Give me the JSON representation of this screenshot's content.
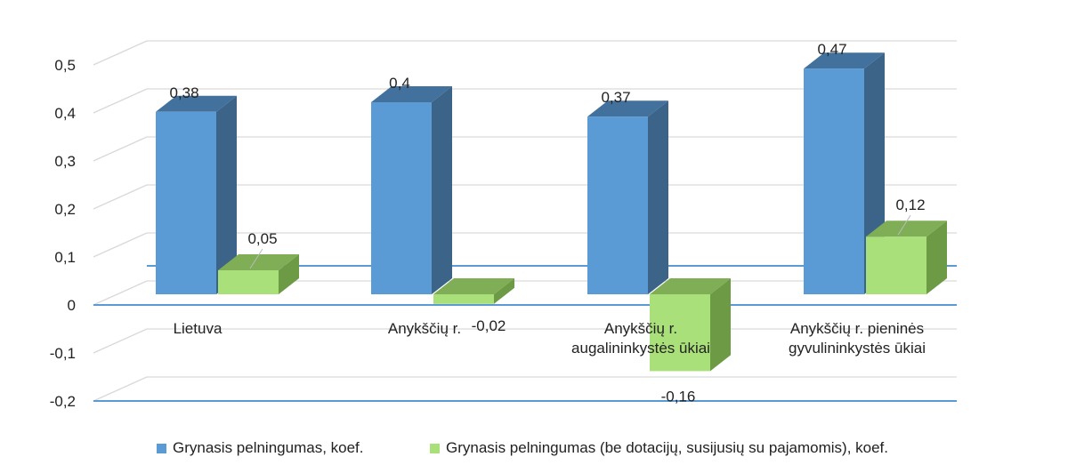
{
  "chart_data": {
    "type": "bar",
    "categories": [
      [
        "Lietuva"
      ],
      [
        "Anykščių r."
      ],
      [
        "Anykščių r.",
        "augalininkystės ūkiai"
      ],
      [
        "Anykščių r. pieninės",
        "gyvulininkystės ūkiai"
      ]
    ],
    "series": [
      {
        "name": "Grynasis pelningumas, koef.",
        "values": [
          0.38,
          0.4,
          0.37,
          0.47
        ],
        "labels": [
          "0,38",
          "0,4",
          "0,37",
          "0,47"
        ],
        "color": "#5B9BD5",
        "side_color": "#3C6388",
        "top_color": "#41719C"
      },
      {
        "name": "Grynasis pelningumas (be dotacijų, susijusių su pajamomis), koef.",
        "values": [
          0.05,
          -0.02,
          -0.16,
          0.12
        ],
        "labels": [
          "0,05",
          "-0,02",
          "-0,16",
          "0,12"
        ],
        "color": "#A9E07A",
        "side_color": "#6D9B45",
        "top_color": "#7FAE56"
      }
    ],
    "y_ticks": [
      "0,5",
      "0,4",
      "0,3",
      "0,2",
      "0,1",
      "0",
      "-0,1",
      "-0,2"
    ],
    "ylim": [
      -0.2,
      0.5
    ],
    "grid": true,
    "legend_position": "bottom",
    "three_d": true,
    "colors": {
      "floor_line": "#5B9BD5",
      "grid": "#D9D9D9"
    }
  }
}
